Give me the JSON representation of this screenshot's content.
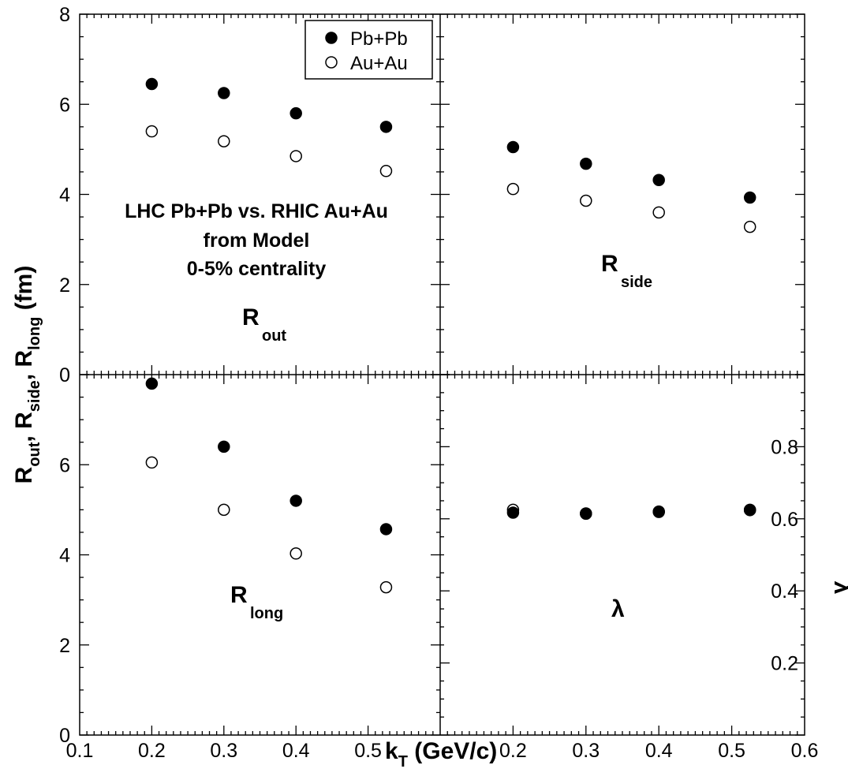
{
  "chart_data": [
    {
      "type": "scatter",
      "panel": "top-left",
      "annotation": {
        "main": "R",
        "sub": "out"
      },
      "ylim": [
        0,
        8
      ],
      "y_ticks": [
        "0",
        "2",
        "4",
        "6",
        "8"
      ],
      "series": [
        {
          "name": "Pb+Pb",
          "marker": "filled-circle",
          "x": [
            0.2,
            0.3,
            0.4,
            0.525
          ],
          "y": [
            6.45,
            6.25,
            5.8,
            5.5
          ]
        },
        {
          "name": "Au+Au",
          "marker": "open-circle",
          "x": [
            0.2,
            0.3,
            0.4,
            0.525
          ],
          "y": [
            5.4,
            5.18,
            4.85,
            4.52
          ]
        }
      ]
    },
    {
      "type": "scatter",
      "panel": "top-right",
      "annotation": {
        "main": "R",
        "sub": "side"
      },
      "ylim": [
        0,
        8
      ],
      "series": [
        {
          "name": "Pb+Pb",
          "marker": "filled-circle",
          "x": [
            0.2,
            0.3,
            0.4,
            0.525
          ],
          "y": [
            5.05,
            4.68,
            4.32,
            3.93
          ]
        },
        {
          "name": "Au+Au",
          "marker": "open-circle",
          "x": [
            0.2,
            0.3,
            0.4,
            0.525
          ],
          "y": [
            4.12,
            3.86,
            3.6,
            3.28
          ]
        }
      ]
    },
    {
      "type": "scatter",
      "panel": "bottom-left",
      "annotation": {
        "main": "R",
        "sub": "long"
      },
      "xlim": [
        0.1,
        0.6
      ],
      "ylim": [
        0,
        8
      ],
      "x_ticks": [
        "0.1",
        "0.2",
        "0.3",
        "0.4",
        "0.5"
      ],
      "y_ticks": [
        "0",
        "2",
        "4",
        "6"
      ],
      "series": [
        {
          "name": "Pb+Pb",
          "marker": "filled-circle",
          "x": [
            0.2,
            0.3,
            0.4,
            0.525
          ],
          "y": [
            7.8,
            6.4,
            5.2,
            4.57
          ]
        },
        {
          "name": "Au+Au",
          "marker": "open-circle",
          "x": [
            0.2,
            0.3,
            0.4,
            0.525
          ],
          "y": [
            6.05,
            5.0,
            4.03,
            3.28
          ]
        }
      ]
    },
    {
      "type": "scatter",
      "panel": "bottom-right",
      "annotation": {
        "main": "λ"
      },
      "xlim": [
        0.1,
        0.6
      ],
      "ylim": [
        0,
        1.0
      ],
      "x_ticks": [
        "0.2",
        "0.3",
        "0.4",
        "0.5",
        "0.6"
      ],
      "y_ticks": [
        "0.2",
        "0.4",
        "0.6",
        "0.8"
      ],
      "ylabel": "λ",
      "series": [
        {
          "name": "Au+Au",
          "marker": "open-circle",
          "x": [
            0.2,
            0.3,
            0.4,
            0.525
          ],
          "y": [
            0.625,
            0.615,
            0.62,
            0.625
          ]
        },
        {
          "name": "Pb+Pb",
          "marker": "filled-circle",
          "x": [
            0.2,
            0.3,
            0.4,
            0.525
          ],
          "y": [
            0.617,
            0.614,
            0.619,
            0.624
          ]
        }
      ]
    }
  ],
  "title_lines": [
    "LHC Pb+Pb vs. RHIC Au+Au",
    "from Model",
    "0-5% centrality"
  ],
  "legend": [
    {
      "label": "Pb+Pb",
      "marker": "filled-circle"
    },
    {
      "label": "Au+Au",
      "marker": "open-circle"
    }
  ],
  "ylabel": {
    "parts": [
      {
        "main": "R",
        "sub": "out"
      },
      {
        "main": ", R",
        "sub": "side"
      },
      {
        "main": ", R",
        "sub": "long"
      },
      {
        "main": " (fm)",
        "sub": ""
      }
    ]
  },
  "xlabel": {
    "main": "k",
    "sub": "T",
    "rest": " (GeV/c)"
  }
}
